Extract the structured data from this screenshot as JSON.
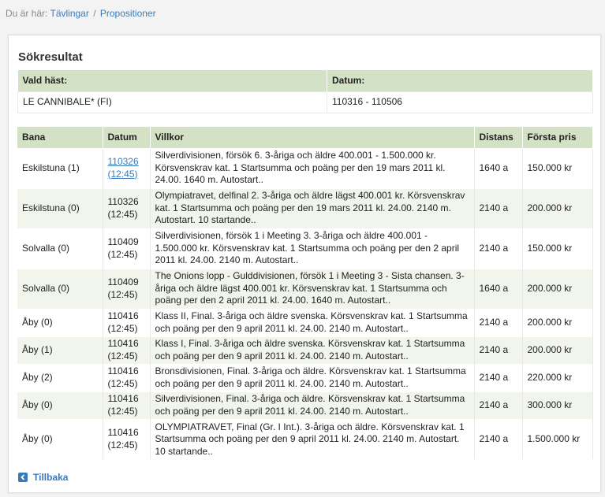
{
  "breadcrumb": {
    "prefix": "Du är här:",
    "items": [
      "Tävlingar",
      "Propositioner"
    ],
    "separator": "/"
  },
  "panel": {
    "title": "Sökresultat"
  },
  "selection": {
    "headers": [
      "Vald häst:",
      "Datum:"
    ],
    "horse": "LE CANNIBALE* (FI)",
    "date_range": "110316 - 110506"
  },
  "results": {
    "headers": [
      "Bana",
      "Datum",
      "Villkor",
      "Distans",
      "Första pris"
    ],
    "rows": [
      {
        "bana": "Eskilstuna (1)",
        "date": "110326",
        "time": "(12:45)",
        "linked": true,
        "villkor": "Silverdivisionen, försök 6. 3-åriga och äldre 400.001 - 1.500.000 kr. Körsvenskrav kat. 1 Startsumma och poäng per den 19 mars 2011 kl. 24.00. 1640 m. Autostart..",
        "distans": "1640 a",
        "pris": "150.000 kr"
      },
      {
        "bana": "Eskilstuna (0)",
        "date": "110326",
        "time": "(12:45)",
        "linked": false,
        "villkor": "Olympiatravet, delfinal 2. 3-åriga och äldre lägst 400.001 kr. Körsvenskrav kat. 1 Startsumma och poäng per den 19 mars 2011 kl. 24.00. 2140 m. Autostart. 10 startande..",
        "distans": "2140 a",
        "pris": "200.000 kr"
      },
      {
        "bana": "Solvalla (0)",
        "date": "110409",
        "time": "(12:45)",
        "linked": false,
        "villkor": "Silverdivisionen, försök 1 i Meeting 3. 3-åriga och äldre 400.001 - 1.500.000 kr. Körsvenskrav kat. 1 Startsumma och poäng per den 2 april 2011 kl. 24.00. 2140 m. Autostart..",
        "distans": "2140 a",
        "pris": "150.000 kr"
      },
      {
        "bana": "Solvalla (0)",
        "date": "110409",
        "time": "(12:45)",
        "linked": false,
        "villkor": "The Onions lopp - Gulddivisionen, försök 1 i Meeting 3 - Sista chansen. 3-åriga och äldre lägst 400.001 kr. Körsvenskrav kat. 1 Startsumma och poäng per den 2 april 2011 kl. 24.00. 1640 m. Autostart..",
        "distans": "1640 a",
        "pris": "200.000 kr"
      },
      {
        "bana": "Åby (0)",
        "date": "110416",
        "time": "(12:45)",
        "linked": false,
        "villkor": "Klass II, Final. 3-åriga och äldre svenska. Körsvenskrav kat. 1 Startsumma och poäng per den 9 april 2011 kl. 24.00. 2140 m. Autostart..",
        "distans": "2140 a",
        "pris": "200.000 kr"
      },
      {
        "bana": "Åby (1)",
        "date": "110416",
        "time": "(12:45)",
        "linked": false,
        "villkor": "Klass I, Final. 3-åriga och äldre svenska. Körsvenskrav kat. 1 Startsumma och poäng per den 9 april 2011 kl. 24.00. 2140 m. Autostart..",
        "distans": "2140 a",
        "pris": "200.000 kr"
      },
      {
        "bana": "Åby (2)",
        "date": "110416",
        "time": "(12:45)",
        "linked": false,
        "villkor": "Bronsdivisionen, Final. 3-åriga och äldre. Körsvenskrav kat. 1 Startsumma och poäng per den 9 april 2011 kl. 24.00. 2140 m. Autostart..",
        "distans": "2140 a",
        "pris": "220.000 kr"
      },
      {
        "bana": "Åby (0)",
        "date": "110416",
        "time": "(12:45)",
        "linked": false,
        "villkor": "Silverdivisionen, Final. 3-åriga och äldre. Körsvenskrav kat. 1 Startsumma och poäng per den 9 april 2011 kl. 24.00. 2140 m. Autostart..",
        "distans": "2140 a",
        "pris": "300.000 kr"
      },
      {
        "bana": "Åby (0)",
        "date": "110416",
        "time": "(12:45)",
        "linked": false,
        "villkor": "OLYMPIATRAVET, Final (Gr. I Int.). 3-åriga och äldre. Körsvenskrav kat. 1 Startsumma och poäng per den 9 april 2011 kl. 24.00. 2140 m. Autostart. 10 startande..",
        "distans": "2140 a",
        "pris": "1.500.000 kr"
      }
    ]
  },
  "back": {
    "label": "Tillbaka",
    "icon": "arrow-left-icon"
  }
}
